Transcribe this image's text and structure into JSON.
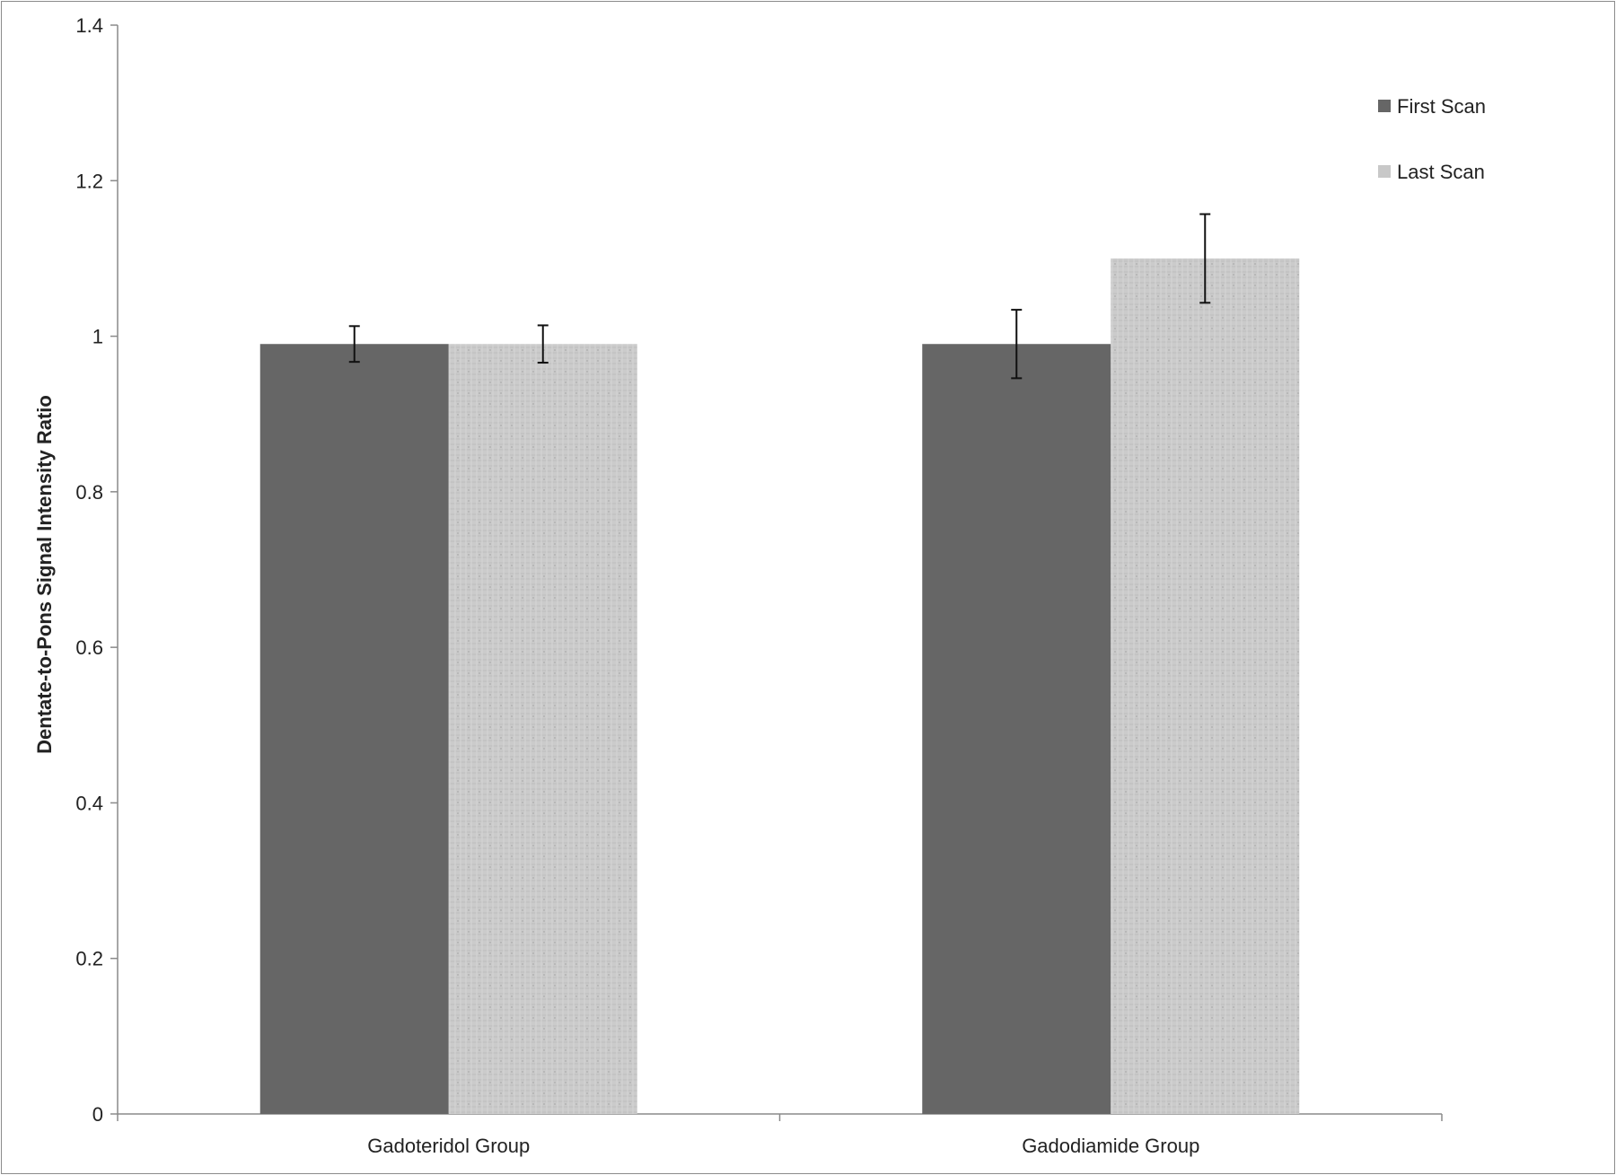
{
  "chart_data": {
    "type": "bar",
    "title": "",
    "xlabel": "",
    "ylabel": "Dentate-to-Pons Signal Intensity Ratio",
    "ylim": [
      0,
      1.4
    ],
    "yticks": [
      0,
      0.2,
      0.4,
      0.6,
      0.8,
      1,
      1.2,
      1.4
    ],
    "ytick_labels": [
      "0",
      "0.2",
      "0.4",
      "0.6",
      "0.8",
      "1",
      "1.2",
      "1.4"
    ],
    "categories": [
      "Gadoteridol Group",
      "Gadodiamide Group"
    ],
    "series": [
      {
        "name": "First Scan",
        "values": [
          0.99,
          0.99
        ],
        "error": [
          0.023,
          0.044
        ],
        "color": "#666666"
      },
      {
        "name": "Last Scan",
        "values": [
          0.99,
          1.1
        ],
        "error": [
          0.024,
          0.057
        ],
        "color": "#c8c8c8"
      }
    ],
    "grid": false,
    "legend_position": "top-right",
    "error_bars": true
  }
}
